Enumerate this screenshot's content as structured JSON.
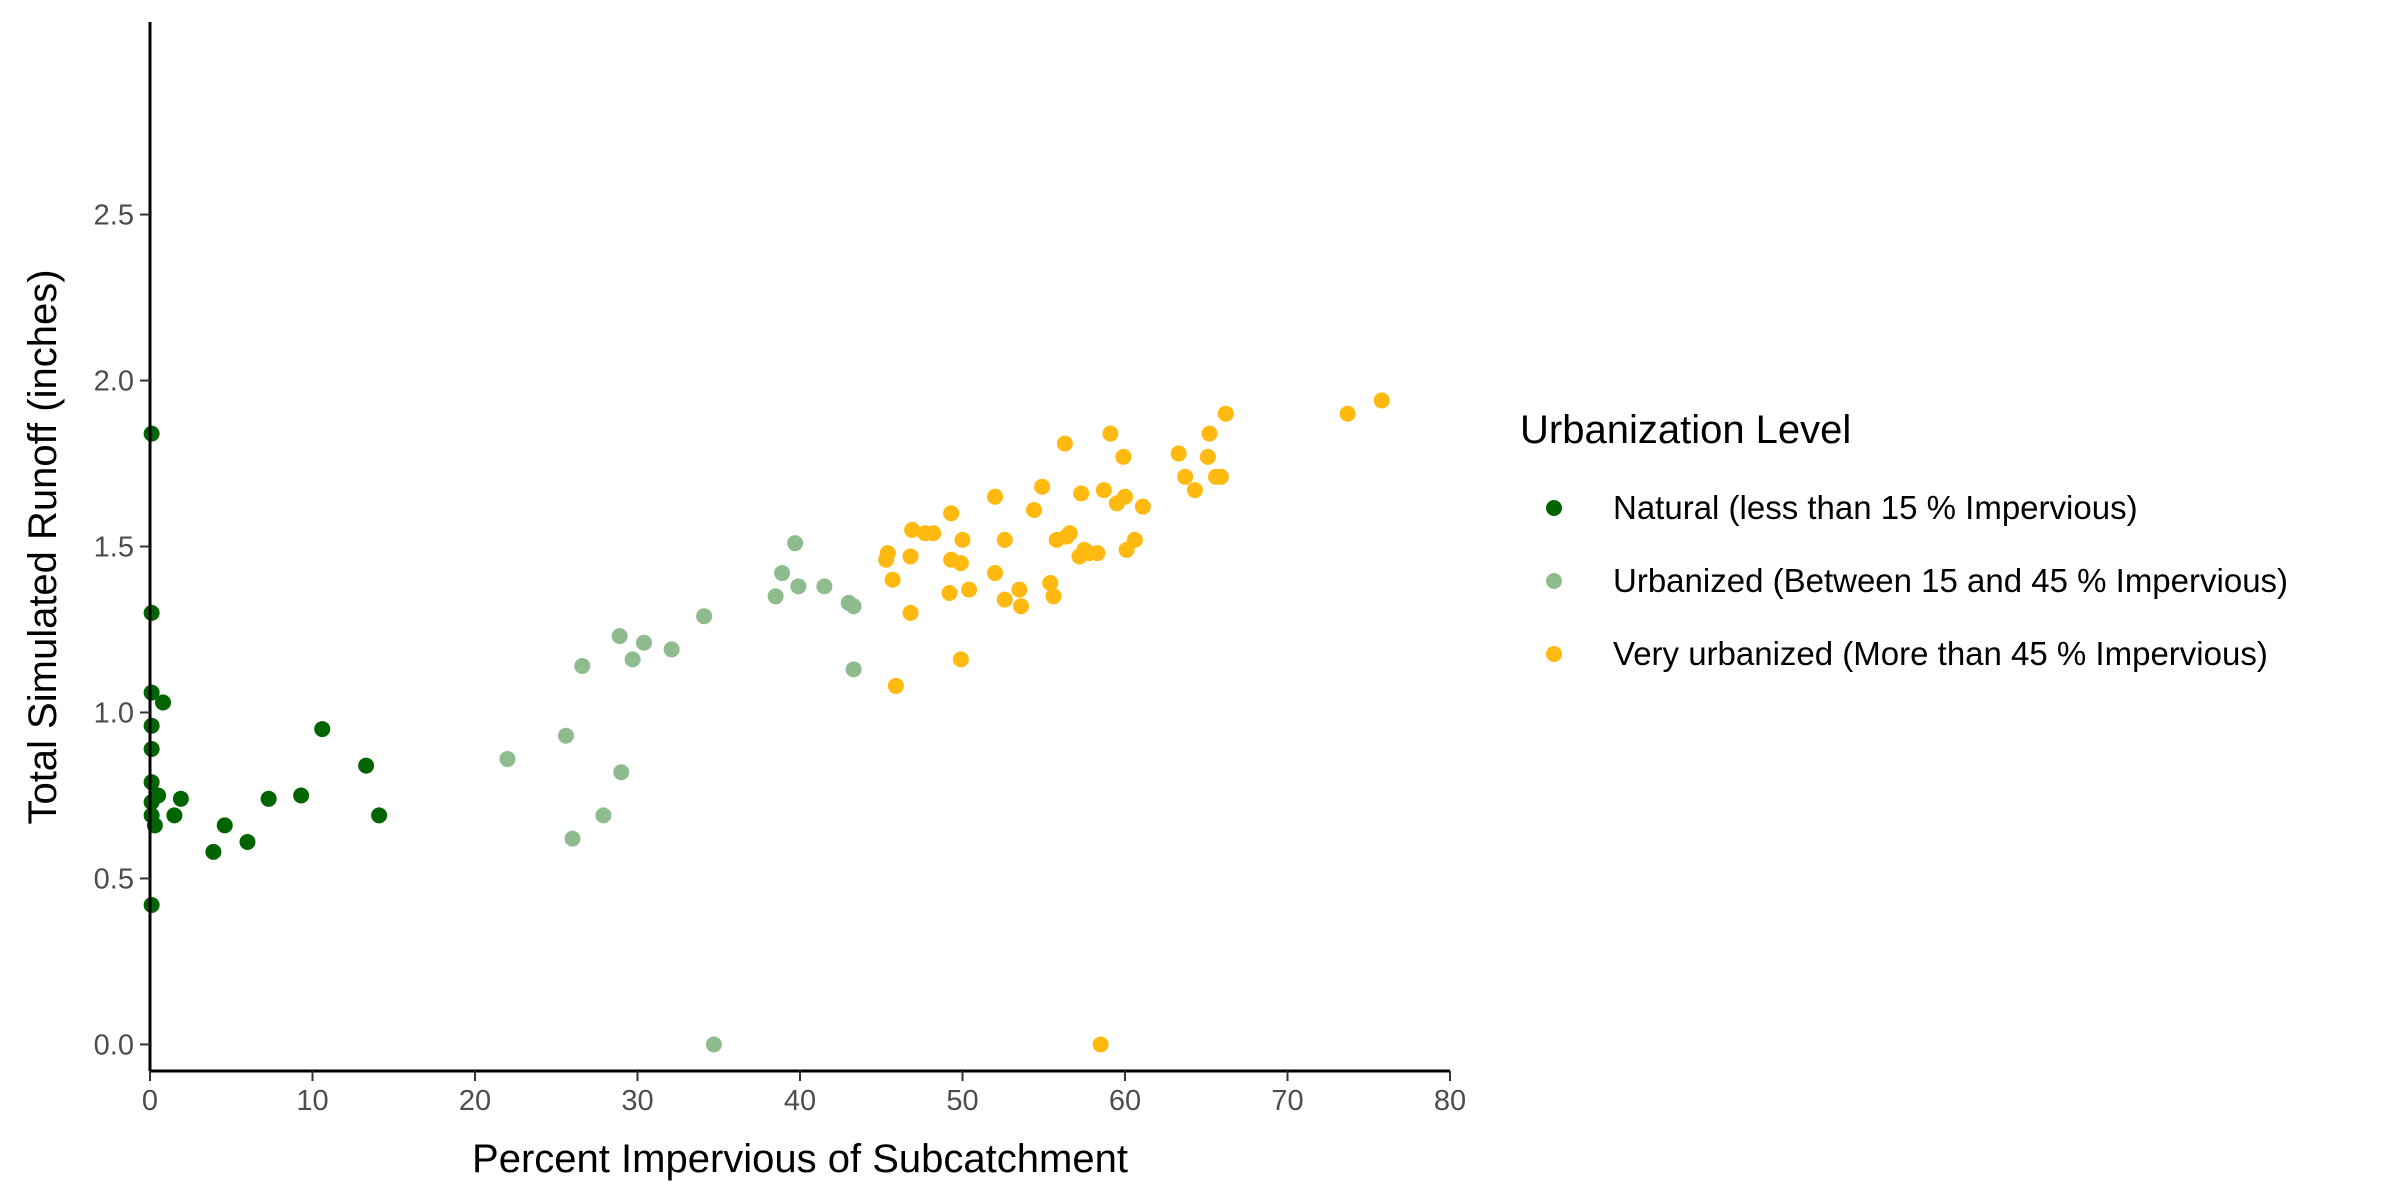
{
  "chart_data": {
    "type": "scatter",
    "title": "",
    "xlabel": "Percent Impervious of Subcatchment",
    "ylabel": "Total Simulated Runoff (inches)",
    "xlim": [
      0,
      80
    ],
    "ylim": [
      -0.08,
      3.08
    ],
    "xticks": [
      0,
      10,
      20,
      30,
      40,
      50,
      60,
      70,
      80
    ],
    "xtick_labels": [
      "0",
      "10",
      "20",
      "30",
      "40",
      "50",
      "60",
      "70",
      "80"
    ],
    "yticks": [
      0.0,
      0.5,
      1.0,
      1.5,
      2.0,
      2.5
    ],
    "ytick_labels": [
      "0.0",
      "0.5",
      "1.0",
      "1.5",
      "2.0",
      "2.5"
    ],
    "grid": false,
    "legend": {
      "title": "Urbanization Level",
      "position": "right"
    },
    "series": [
      {
        "name": "Natural (less than 15 % Impervious)",
        "color": "#006400",
        "points": [
          [
            0.1,
            1.84
          ],
          [
            0.1,
            1.3
          ],
          [
            0.1,
            1.06
          ],
          [
            0.1,
            0.96
          ],
          [
            0.1,
            0.89
          ],
          [
            0.1,
            0.79
          ],
          [
            0.1,
            0.73
          ],
          [
            0.1,
            0.69
          ],
          [
            0.1,
            0.42
          ],
          [
            0.3,
            0.66
          ],
          [
            0.5,
            0.75
          ],
          [
            0.8,
            1.03
          ],
          [
            1.5,
            0.69
          ],
          [
            1.9,
            0.74
          ],
          [
            3.9,
            0.58
          ],
          [
            4.6,
            0.66
          ],
          [
            6.0,
            0.61
          ],
          [
            7.3,
            0.74
          ],
          [
            9.3,
            0.75
          ],
          [
            10.6,
            0.95
          ],
          [
            13.3,
            0.84
          ],
          [
            14.1,
            0.69
          ]
        ]
      },
      {
        "name": "Urbanized (Between 15 and 45 % Impervious)",
        "color": "#8fbc8f",
        "points": [
          [
            22.0,
            0.86
          ],
          [
            25.6,
            0.93
          ],
          [
            26.0,
            0.62
          ],
          [
            26.6,
            1.14
          ],
          [
            27.9,
            0.69
          ],
          [
            28.9,
            1.23
          ],
          [
            29.0,
            0.82
          ],
          [
            29.7,
            1.16
          ],
          [
            30.4,
            1.21
          ],
          [
            32.1,
            1.19
          ],
          [
            34.1,
            1.29
          ],
          [
            34.7,
            0.0
          ],
          [
            38.5,
            1.35
          ],
          [
            38.9,
            1.42
          ],
          [
            39.7,
            1.51
          ],
          [
            39.9,
            1.38
          ],
          [
            41.5,
            1.38
          ],
          [
            43.0,
            1.33
          ],
          [
            43.3,
            1.13
          ],
          [
            43.3,
            1.32
          ]
        ]
      },
      {
        "name": "Very urbanized (More than 45 % Impervious)",
        "color": "#ffb90f",
        "points": [
          [
            45.3,
            1.46
          ],
          [
            45.4,
            1.48
          ],
          [
            45.7,
            1.4
          ],
          [
            45.9,
            1.08
          ],
          [
            46.8,
            1.3
          ],
          [
            46.8,
            1.47
          ],
          [
            46.9,
            1.55
          ],
          [
            47.7,
            1.54
          ],
          [
            48.2,
            1.54
          ],
          [
            49.2,
            1.36
          ],
          [
            49.3,
            1.6
          ],
          [
            49.3,
            1.46
          ],
          [
            49.9,
            1.45
          ],
          [
            49.9,
            1.16
          ],
          [
            50.0,
            1.52
          ],
          [
            50.4,
            1.37
          ],
          [
            52.0,
            1.65
          ],
          [
            52.0,
            1.42
          ],
          [
            52.6,
            1.52
          ],
          [
            52.6,
            1.34
          ],
          [
            53.5,
            1.37
          ],
          [
            53.6,
            1.32
          ],
          [
            54.4,
            1.61
          ],
          [
            54.9,
            1.68
          ],
          [
            55.4,
            1.39
          ],
          [
            55.6,
            1.35
          ],
          [
            55.8,
            1.52
          ],
          [
            56.3,
            1.81
          ],
          [
            56.4,
            1.53
          ],
          [
            56.6,
            1.54
          ],
          [
            57.2,
            1.47
          ],
          [
            57.3,
            1.66
          ],
          [
            57.5,
            1.49
          ],
          [
            57.8,
            1.48
          ],
          [
            58.3,
            1.48
          ],
          [
            58.5,
            0.0
          ],
          [
            58.7,
            1.67
          ],
          [
            59.1,
            1.84
          ],
          [
            59.5,
            1.63
          ],
          [
            59.9,
            1.77
          ],
          [
            60.0,
            1.65
          ],
          [
            60.1,
            1.49
          ],
          [
            60.6,
            1.52
          ],
          [
            61.1,
            1.62
          ],
          [
            63.3,
            1.78
          ],
          [
            63.7,
            1.71
          ],
          [
            64.3,
            1.67
          ],
          [
            65.1,
            1.77
          ],
          [
            65.2,
            1.84
          ],
          [
            65.6,
            1.71
          ],
          [
            65.9,
            1.71
          ],
          [
            66.2,
            1.9
          ],
          [
            73.7,
            1.9
          ],
          [
            75.8,
            1.94
          ]
        ]
      }
    ]
  }
}
